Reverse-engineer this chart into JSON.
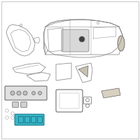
{
  "bg_color": "#ffffff",
  "border_color": "#b0b0b0",
  "highlight_color": "#3ab5c8",
  "outline_color": "#909090",
  "dark_color": "#606060",
  "light_gray": "#b0b0b0",
  "fig_width": 2.0,
  "fig_height": 2.0,
  "dpi": 100
}
